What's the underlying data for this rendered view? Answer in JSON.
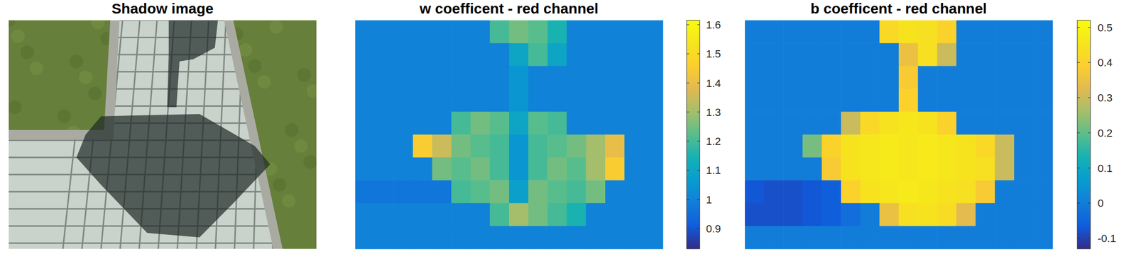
{
  "chart_data": [
    {
      "type": "image",
      "title": "Shadow image"
    },
    {
      "type": "heatmap",
      "title": "w coefficent - red channel",
      "cells": [
        [
          1,
          1,
          1,
          1,
          1,
          1,
          1,
          1.2,
          1.25,
          1.22,
          1.15,
          1,
          1,
          1,
          1,
          1
        ],
        [
          1,
          1,
          1,
          1,
          1,
          1,
          1,
          1,
          1.1,
          1.2,
          1.1,
          1,
          1,
          1,
          1,
          1
        ],
        [
          1,
          1,
          1,
          1,
          1,
          1,
          1,
          1,
          1.05,
          1,
          1,
          1,
          1,
          1,
          1,
          1
        ],
        [
          1,
          1,
          1,
          1,
          1,
          1,
          1,
          1,
          1.05,
          1,
          1,
          1,
          1,
          1,
          1,
          1
        ],
        [
          1,
          1,
          1,
          1,
          1,
          1.2,
          1.25,
          1.22,
          1.1,
          1.22,
          1.2,
          1,
          1,
          1,
          1,
          1
        ],
        [
          1,
          1,
          1,
          1.45,
          1.35,
          1.25,
          1.22,
          1.2,
          1.05,
          1.2,
          1.22,
          1.25,
          1.3,
          1.4,
          1,
          1
        ],
        [
          1,
          1,
          1,
          1,
          1.25,
          1.22,
          1.25,
          1.2,
          1.05,
          1.2,
          1.25,
          1.22,
          1.3,
          1.45,
          1,
          1
        ],
        [
          0.97,
          0.97,
          0.97,
          0.97,
          0.97,
          1.2,
          1.22,
          1.25,
          1.08,
          1.25,
          1.22,
          1.2,
          1.25,
          1,
          1,
          1
        ],
        [
          1,
          1,
          1,
          1,
          1,
          1,
          1,
          1.2,
          1.3,
          1.25,
          1.2,
          1.15,
          1,
          1,
          1,
          1
        ],
        [
          1,
          1,
          1,
          1,
          1,
          1,
          1,
          1,
          1,
          1,
          1,
          1,
          1,
          1,
          1,
          1
        ]
      ],
      "colorbar_range": [
        0.83,
        1.615
      ],
      "colorbar_ticks": [
        0.9,
        1,
        1.1,
        1.2,
        1.3,
        1.4,
        1.5,
        1.6
      ]
    },
    {
      "type": "heatmap",
      "title": "b coefficent - red channel",
      "cells": [
        [
          0,
          0,
          0,
          0,
          0,
          0,
          0,
          0.42,
          0.45,
          0.44,
          0.4,
          0,
          0,
          0,
          0,
          0
        ],
        [
          0,
          0,
          0,
          0,
          0,
          0,
          0,
          0,
          0.35,
          0.44,
          0.3,
          0,
          0,
          0,
          0,
          0
        ],
        [
          0,
          0,
          0,
          0,
          0,
          0,
          0,
          0,
          0.38,
          0,
          0,
          0,
          0,
          0,
          0,
          0
        ],
        [
          0,
          0,
          0,
          0,
          0,
          0,
          0,
          0,
          0.4,
          0,
          0,
          0,
          0,
          0,
          0,
          0
        ],
        [
          0,
          0,
          0,
          0,
          0,
          0.3,
          0.42,
          0.45,
          0.46,
          0.45,
          0.4,
          0,
          0,
          0,
          0,
          0
        ],
        [
          0,
          0,
          0,
          0.22,
          0.4,
          0.45,
          0.46,
          0.47,
          0.46,
          0.47,
          0.46,
          0.45,
          0.42,
          0.3,
          0,
          0
        ],
        [
          0,
          0,
          0,
          0,
          0.38,
          0.45,
          0.46,
          0.47,
          0.46,
          0.47,
          0.46,
          0.45,
          0.44,
          0.3,
          0,
          0
        ],
        [
          -0.07,
          -0.08,
          -0.08,
          -0.07,
          -0.06,
          0.4,
          0.45,
          0.46,
          0.47,
          0.46,
          0.45,
          0.44,
          0.38,
          0,
          0,
          0
        ],
        [
          -0.08,
          -0.08,
          -0.08,
          -0.07,
          -0.06,
          -0.03,
          0,
          0.35,
          0.44,
          0.45,
          0.43,
          0.33,
          0,
          0,
          0,
          0
        ],
        [
          0,
          0,
          0,
          0,
          0,
          0,
          0,
          0,
          0,
          0,
          0,
          0,
          0,
          0,
          0,
          0
        ]
      ],
      "colorbar_range": [
        -0.13,
        0.52
      ],
      "colorbar_ticks": [
        -0.1,
        0,
        0.1,
        0.2,
        0.3,
        0.4,
        0.5
      ]
    }
  ]
}
